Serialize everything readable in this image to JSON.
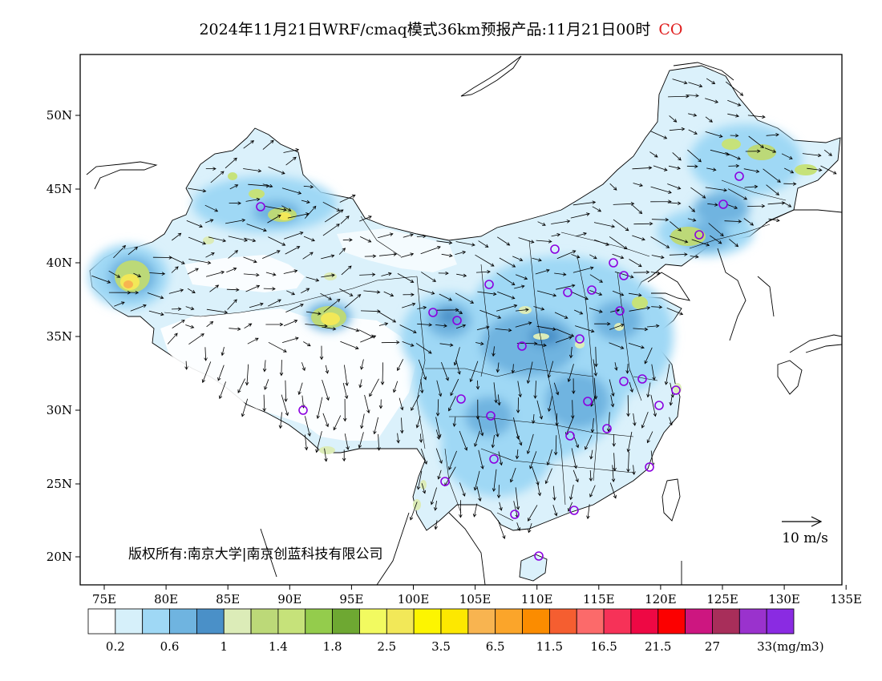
{
  "title": {
    "text": "2024年11月21日WRF/cmaq模式36km预报产品:11月21日00时",
    "species": "CO",
    "species_color": "#e02020"
  },
  "axes": {
    "lat_labels": [
      "50N",
      "45N",
      "40N",
      "35N",
      "30N",
      "25N",
      "20N"
    ],
    "lon_labels": [
      "75E",
      "80E",
      "85E",
      "90E",
      "95E",
      "100E",
      "105E",
      "110E",
      "115E",
      "120E",
      "125E",
      "130E",
      "135E"
    ]
  },
  "copyright": "版权所有:南京大学|南京创蓝科技有限公司",
  "wind_scale": {
    "label": "10 m/s"
  },
  "colorbar": {
    "colors": [
      "#ffffff",
      "#d6f0fa",
      "#9fd8f5",
      "#6fb4e0",
      "#4a90c8",
      "#dcecb8",
      "#bcd978",
      "#c6e27a",
      "#94cc4c",
      "#6ea832",
      "#f2fa60",
      "#f2e858",
      "#fdf500",
      "#fde800",
      "#f8b450",
      "#fba52a",
      "#fb8c00",
      "#f55e30",
      "#fc6a6a",
      "#f63258",
      "#ee0844",
      "#fc0000",
      "#cd1680",
      "#a82e5a",
      "#9a32cd",
      "#8a2be2"
    ],
    "labels": [
      "0.2",
      "0.6",
      "1",
      "1.4",
      "1.8",
      "2.5",
      "3.5",
      "6.5",
      "11.5",
      "16.5",
      "21.5",
      "27",
      "33(mg/m3)"
    ]
  },
  "stations": {
    "count": 38,
    "color": "#8b00e0"
  }
}
